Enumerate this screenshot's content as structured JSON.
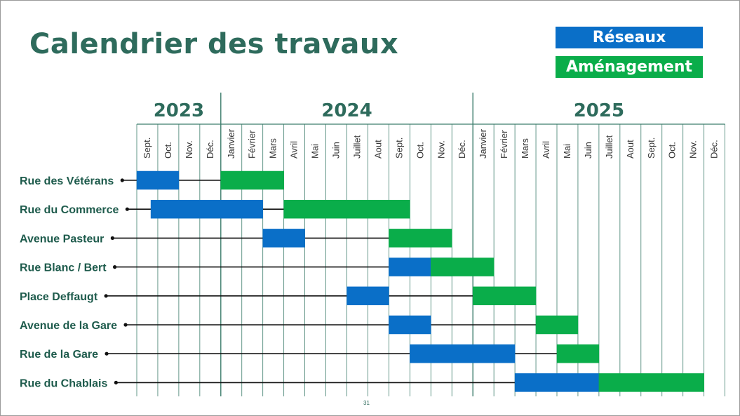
{
  "title": "Calendrier des travaux",
  "page_number": "31",
  "colors": {
    "reseaux": "#0a6fc8",
    "amenagement": "#0aad4a",
    "grid": "#3d7d6c",
    "title": "#2e6b5c",
    "row_label": "#1e5b4c"
  },
  "legend": [
    {
      "label": "Réseaux",
      "color": "#0a6fc8"
    },
    {
      "label": "Aménagement",
      "color": "#0aad4a"
    }
  ],
  "chart_data": {
    "type": "gantt",
    "title": "Calendrier des travaux",
    "years": [
      {
        "label": "2023",
        "months": 4
      },
      {
        "label": "2024",
        "months": 12
      },
      {
        "label": "2025",
        "months": 12
      }
    ],
    "months": [
      "Sept.",
      "Oct.",
      "Nov.",
      "Déc.",
      "Janvier",
      "Février",
      "Mars",
      "Avril",
      "Mai",
      "Juin",
      "Juillet",
      "Aout",
      "Sept.",
      "Oct.",
      "Nov.",
      "Déc.",
      "Janvier",
      "Février",
      "Mars",
      "Avril",
      "Mai",
      "Juin",
      "Juillet",
      "Aout",
      "Sept.",
      "Oct.",
      "Nov.",
      "Déc."
    ],
    "legend_placement": "top-right",
    "series": [
      {
        "name": "Réseaux",
        "color": "#0a6fc8"
      },
      {
        "name": "Aménagement",
        "color": "#0aad4a"
      }
    ],
    "tasks": [
      {
        "name": "Rue des Vétérans",
        "line_start": 0.0,
        "bars": [
          {
            "series": "Réseaux",
            "start": 0.0,
            "end": 2.0
          },
          {
            "series": "Aménagement",
            "start": 4.0,
            "end": 7.0
          }
        ]
      },
      {
        "name": "Rue du Commerce",
        "line_start": 0.0,
        "bars": [
          {
            "series": "Réseaux",
            "start": 0.67,
            "end": 6.0
          },
          {
            "series": "Aménagement",
            "start": 7.0,
            "end": 13.0
          }
        ]
      },
      {
        "name": "Avenue Pasteur",
        "line_start": 0.0,
        "bars": [
          {
            "series": "Réseaux",
            "start": 6.0,
            "end": 8.0
          },
          {
            "series": "Aménagement",
            "start": 12.0,
            "end": 15.0
          }
        ]
      },
      {
        "name": "Rue Blanc / Bert",
        "line_start": 0.0,
        "bars": [
          {
            "series": "Réseaux",
            "start": 12.0,
            "end": 15.0
          },
          {
            "series": "Aménagement",
            "start": 14.0,
            "end": 17.0
          }
        ]
      },
      {
        "name": "Place Deffaugt",
        "line_start": 0.0,
        "bars": [
          {
            "series": "Réseaux",
            "start": 10.0,
            "end": 12.0
          },
          {
            "series": "Aménagement",
            "start": 16.0,
            "end": 19.0
          }
        ]
      },
      {
        "name": "Avenue de la Gare",
        "line_start": 0.0,
        "bars": [
          {
            "series": "Réseaux",
            "start": 12.0,
            "end": 14.0
          },
          {
            "series": "Aménagement",
            "start": 19.0,
            "end": 21.0
          }
        ]
      },
      {
        "name": "Rue de la Gare",
        "line_start": 0.0,
        "bars": [
          {
            "series": "Réseaux",
            "start": 13.0,
            "end": 18.0
          },
          {
            "series": "Aménagement",
            "start": 20.0,
            "end": 22.0
          }
        ]
      },
      {
        "name": "Rue du Chablais",
        "line_start": 0.0,
        "bars": [
          {
            "series": "Réseaux",
            "start": 18.0,
            "end": 22.0
          },
          {
            "series": "Aménagement",
            "start": 22.0,
            "end": 27.0
          }
        ]
      }
    ]
  }
}
